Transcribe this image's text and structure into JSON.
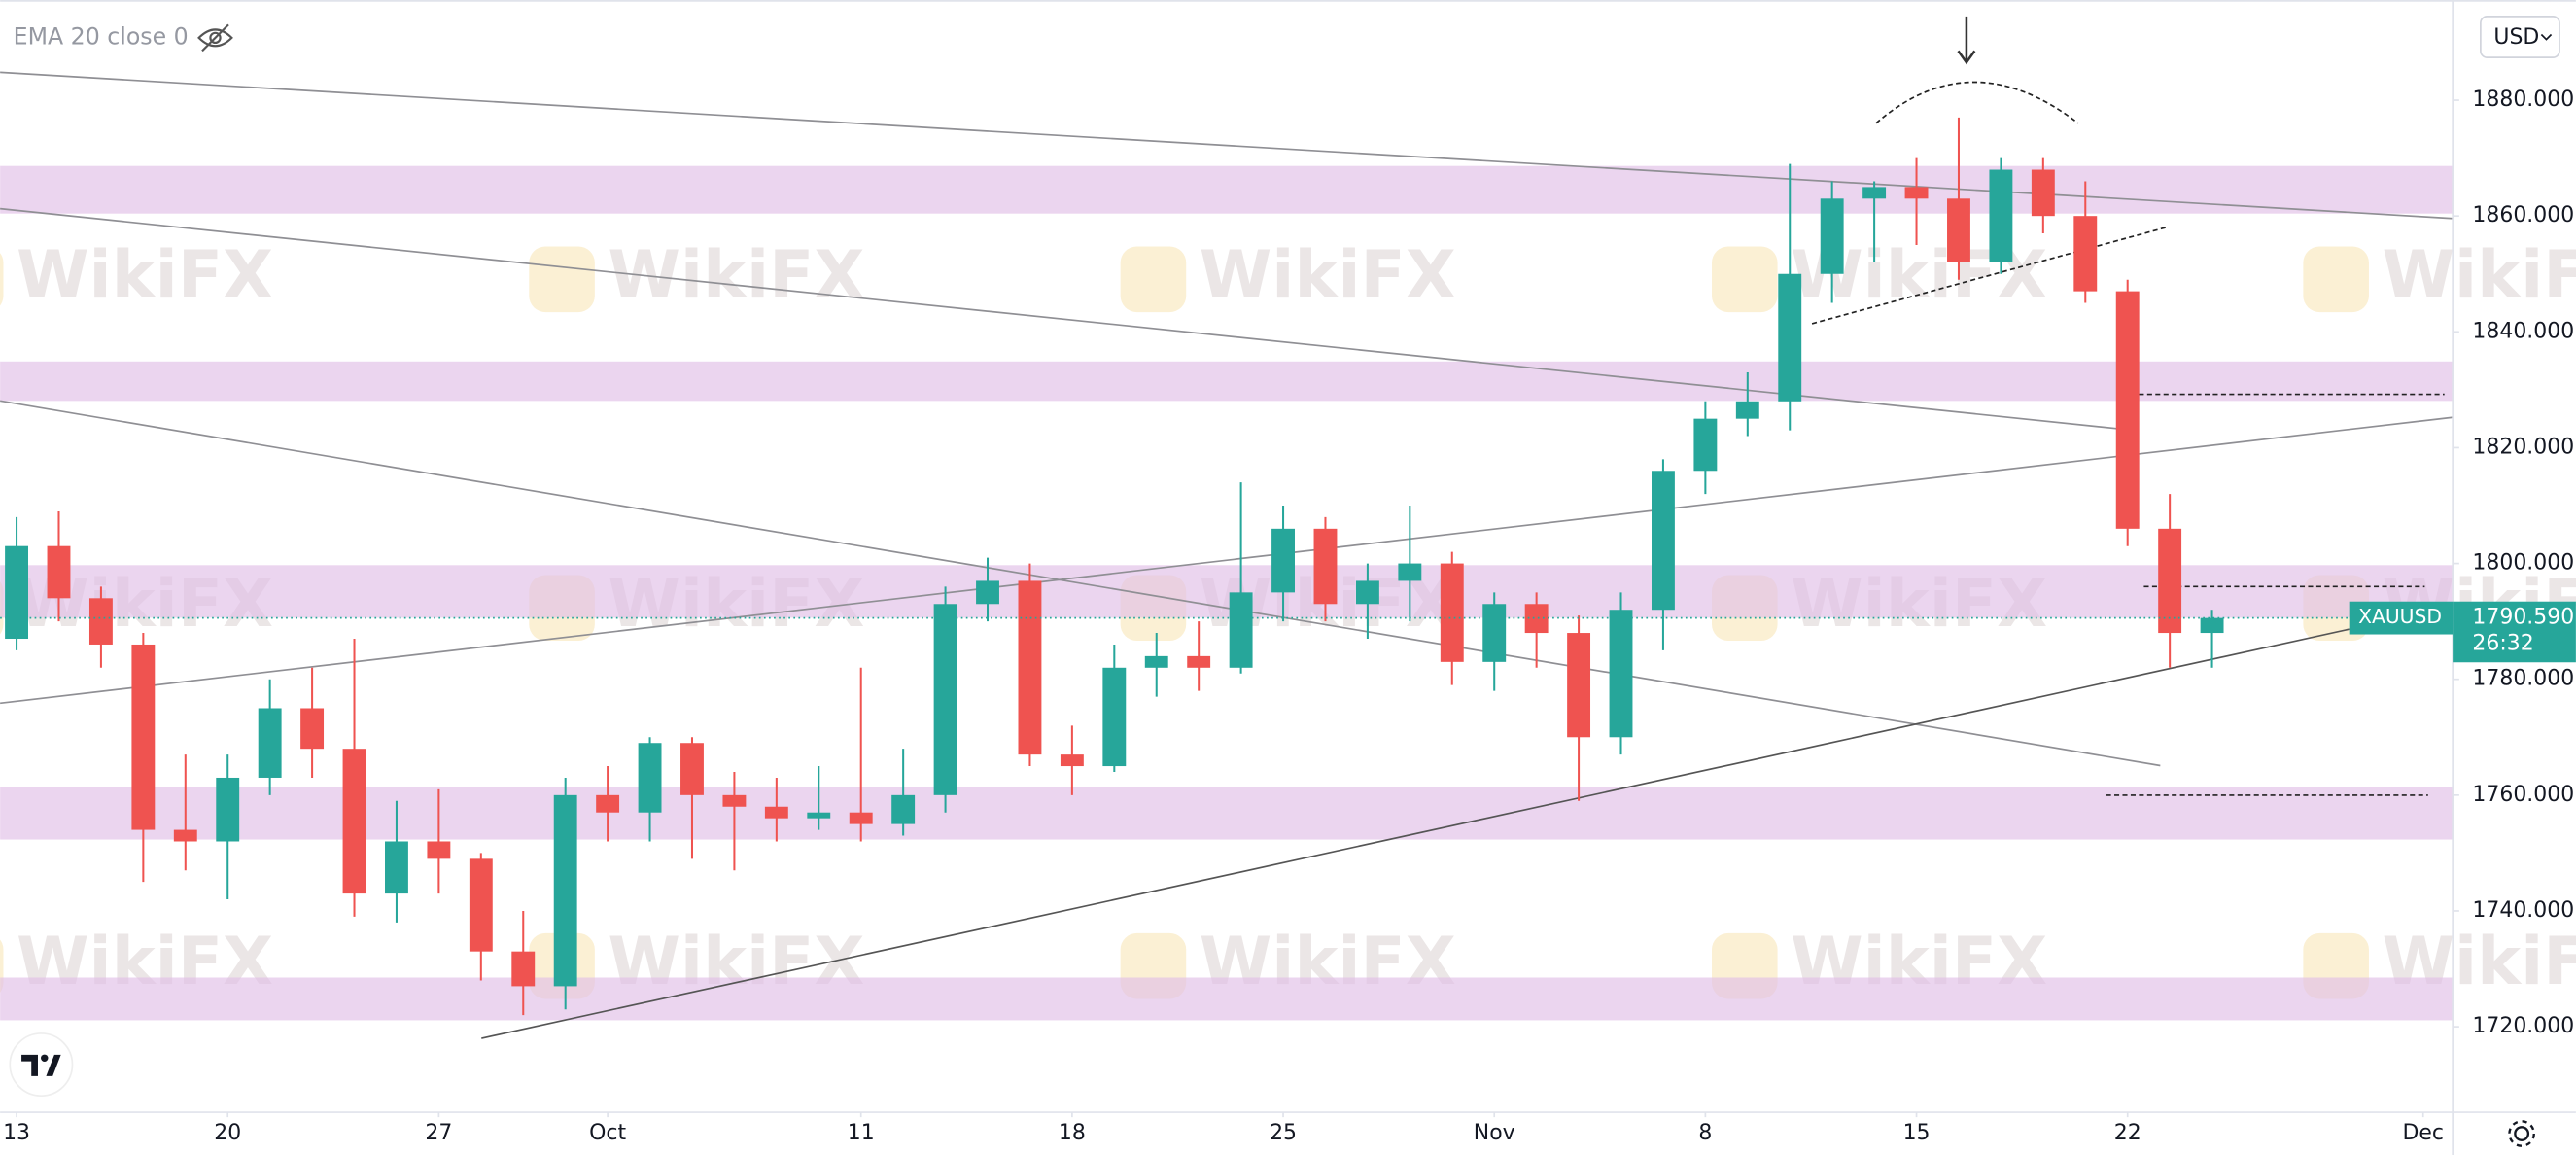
{
  "indicator_label": "EMA 20 close 0",
  "currency": "USD",
  "watermark": "WikiFX",
  "chart_data": {
    "type": "candlestick",
    "symbol": "XAUUSD",
    "countdown": "26:32",
    "last_price": {
      "value": 1790.59,
      "label": "1790.590"
    },
    "up_color": "#26a69a",
    "down_color": "#ef5350",
    "x": [
      0,
      1,
      2,
      3,
      4,
      5,
      6,
      7,
      8,
      9,
      10,
      11,
      12,
      13,
      14,
      15,
      16,
      17,
      18,
      19,
      20,
      21,
      22,
      23,
      24,
      25,
      26,
      27,
      28,
      29,
      30,
      31,
      32,
      33,
      34,
      35,
      36,
      37,
      38,
      39,
      40,
      41,
      42,
      43,
      44,
      45,
      46,
      47,
      48,
      49,
      50,
      51,
      52
    ],
    "open": [
      1787,
      1803,
      1794,
      1786,
      1754,
      1752,
      1763,
      1775,
      1768,
      1743,
      1752,
      1749,
      1733,
      1727,
      1760,
      1757,
      1769,
      1760,
      1758,
      1756,
      1757,
      1755,
      1760,
      1793,
      1797,
      1767,
      1765,
      1782,
      1784,
      1782,
      1795,
      1806,
      1793,
      1797,
      1800,
      1783,
      1793,
      1788,
      1770,
      1792,
      1816,
      1825,
      1828,
      1850,
      1863,
      1865,
      1863,
      1852,
      1868,
      1860,
      1847,
      1806,
      1788
    ],
    "high": [
      1808,
      1809,
      1796,
      1788,
      1767,
      1767,
      1780,
      1782,
      1787,
      1759,
      1761,
      1750,
      1740,
      1763,
      1765,
      1770,
      1770,
      1764,
      1763,
      1765,
      1782,
      1768,
      1796,
      1801,
      1800,
      1772,
      1786,
      1788,
      1790,
      1814,
      1810,
      1808,
      1800,
      1810,
      1802,
      1795,
      1795,
      1791,
      1795,
      1818,
      1828,
      1833,
      1869,
      1866,
      1866,
      1870,
      1877,
      1870,
      1870,
      1866,
      1849,
      1812,
      1792
    ],
    "low": [
      1785,
      1790,
      1782,
      1745,
      1747,
      1742,
      1760,
      1763,
      1739,
      1738,
      1743,
      1728,
      1722,
      1723,
      1752,
      1752,
      1749,
      1747,
      1752,
      1754,
      1752,
      1753,
      1757,
      1790,
      1765,
      1760,
      1764,
      1777,
      1778,
      1781,
      1790,
      1790,
      1787,
      1790,
      1779,
      1778,
      1782,
      1759,
      1767,
      1785,
      1812,
      1822,
      1823,
      1845,
      1852,
      1855,
      1849,
      1850,
      1857,
      1845,
      1803,
      1782,
      1782
    ],
    "close": [
      1803,
      1794,
      1786,
      1754,
      1752,
      1763,
      1775,
      1768,
      1743,
      1752,
      1749,
      1733,
      1727,
      1760,
      1757,
      1769,
      1760,
      1758,
      1756,
      1757,
      1755,
      1760,
      1793,
      1797,
      1767,
      1765,
      1782,
      1784,
      1782,
      1795,
      1806,
      1793,
      1797,
      1800,
      1783,
      1793,
      1788,
      1770,
      1792,
      1816,
      1825,
      1828,
      1850,
      1863,
      1865,
      1863,
      1852,
      1868,
      1860,
      1847,
      1806,
      1788,
      1790.59
    ],
    "xlim": [
      -0.39,
      57.7
    ],
    "xticks": [
      {
        "value": 0,
        "label": "13"
      },
      {
        "value": 5,
        "label": "20"
      },
      {
        "value": 10,
        "label": "27"
      },
      {
        "value": 14,
        "label": "Oct"
      },
      {
        "value": 20,
        "label": "11"
      },
      {
        "value": 25,
        "label": "18"
      },
      {
        "value": 30,
        "label": "25"
      },
      {
        "value": 35,
        "label": "Nov"
      },
      {
        "value": 40,
        "label": "8"
      },
      {
        "value": 45,
        "label": "15"
      },
      {
        "value": 50,
        "label": "22"
      },
      {
        "value": 57,
        "label": "Dec"
      }
    ],
    "ylim": [
      1705.8,
      1897.3
    ],
    "yticks": [
      {
        "value": 1720,
        "label": "1720.000"
      },
      {
        "value": 1740,
        "label": "1740.000"
      },
      {
        "value": 1760,
        "label": "1760.000"
      },
      {
        "value": 1780,
        "label": "1780.000"
      },
      {
        "value": 1800,
        "label": "1800.000"
      },
      {
        "value": 1820,
        "label": "1820.000"
      },
      {
        "value": 1840,
        "label": "1840.000"
      },
      {
        "value": 1860,
        "label": "1860.000"
      },
      {
        "value": 1880,
        "label": "1880.000"
      }
    ]
  }
}
